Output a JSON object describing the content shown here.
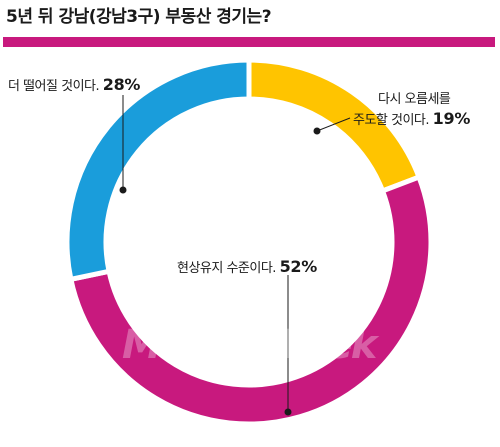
{
  "title": "5년 뒤 강남(강남3구) 부동산 경기는?",
  "watermark": "MoneyWeek",
  "colors": {
    "accent": "#c8197e",
    "rise": "#ffc400",
    "maintain": "#c8197e",
    "fall": "#1a9ddb"
  },
  "chart_data": {
    "type": "pie",
    "title": "5년 뒤 강남(강남3구) 부동산 경기는?",
    "slices": [
      {
        "label_lines": [
          "다시 오름세를",
          "주도할 것이다."
        ],
        "value": 19,
        "pct_label": "19%",
        "color": "#ffc400"
      },
      {
        "label_lines": [
          "현상유지 수준이다."
        ],
        "value": 52,
        "pct_label": "52%",
        "color": "#c8197e"
      },
      {
        "label_lines": [
          "더 떨어질 것이다."
        ],
        "value": 28,
        "pct_label": "28%",
        "color": "#1a9ddb"
      }
    ]
  }
}
